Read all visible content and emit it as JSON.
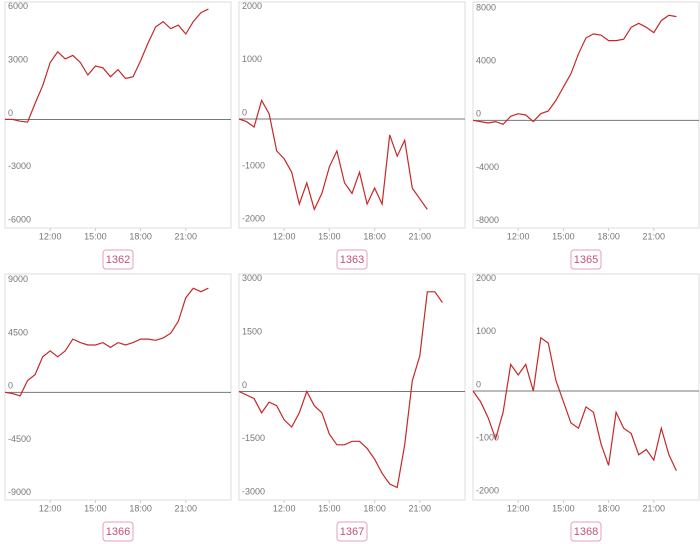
{
  "chart_data": [
    {
      "type": "line",
      "title": "1362",
      "color": "#c62828",
      "x": [
        9,
        9.5,
        10,
        10.5,
        11,
        11.5,
        12,
        12.5,
        13,
        13.5,
        14,
        14.5,
        15,
        15.5,
        16,
        16.5,
        17,
        17.5,
        18,
        18.5,
        19,
        19.5,
        20,
        20.5,
        21,
        21.5,
        22,
        22.5
      ],
      "values": [
        0,
        0,
        -100,
        -150,
        900,
        1900,
        3200,
        3800,
        3400,
        3600,
        3200,
        2500,
        3000,
        2900,
        2400,
        2800,
        2300,
        2400,
        3300,
        4300,
        5200,
        5500,
        5100,
        5300,
        4800,
        5500,
        6000,
        6200
      ],
      "xlim": [
        9,
        24
      ],
      "xticks": [
        {
          "value": 12,
          "label": "12:00"
        },
        {
          "value": 15,
          "label": "15:00"
        },
        {
          "value": 18,
          "label": "18:00"
        },
        {
          "value": 21,
          "label": "21:00"
        }
      ],
      "ylim": [
        -6100,
        6600
      ],
      "yticks": [
        -6000,
        -3000,
        0,
        3000,
        6000
      ]
    },
    {
      "type": "line",
      "title": "1363",
      "color": "#c62828",
      "x": [
        9,
        9.5,
        10,
        10.5,
        11,
        11.5,
        12,
        12.5,
        13,
        13.5,
        14,
        14.5,
        15,
        15.5,
        16,
        16.5,
        17,
        17.5,
        18,
        18.5,
        19,
        19.5,
        20,
        20.5,
        21,
        21.5
      ],
      "values": [
        0,
        -50,
        -150,
        350,
        100,
        -600,
        -750,
        -1000,
        -1600,
        -1200,
        -1700,
        -1400,
        -900,
        -600,
        -1200,
        -1400,
        -1000,
        -1600,
        -1300,
        -1600,
        -300,
        -700,
        -400,
        -1300,
        -1500,
        -1700
      ],
      "xlim": [
        9,
        24
      ],
      "xticks": [
        {
          "value": 12,
          "label": "12:00"
        },
        {
          "value": 15,
          "label": "15:00"
        },
        {
          "value": 18,
          "label": "18:00"
        },
        {
          "value": 21,
          "label": "21:00"
        }
      ],
      "ylim": [
        -2050,
        2200
      ],
      "yticks": [
        -2000,
        -1000,
        0,
        1000,
        2000
      ]
    },
    {
      "type": "line",
      "title": "1365",
      "color": "#c62828",
      "x": [
        9,
        9.5,
        10,
        10.5,
        11,
        11.5,
        12,
        12.5,
        13,
        13.5,
        14,
        14.5,
        15,
        15.5,
        16,
        16.5,
        17,
        17.5,
        18,
        18.5,
        19,
        19.5,
        20,
        20.5,
        21,
        21.5,
        22,
        22.5
      ],
      "values": [
        0,
        -100,
        -200,
        -100,
        -300,
        300,
        500,
        400,
        -100,
        500,
        700,
        1500,
        2500,
        3500,
        5000,
        6200,
        6500,
        6400,
        6000,
        6000,
        6100,
        7000,
        7300,
        7000,
        6600,
        7500,
        7900,
        7800
      ],
      "xlim": [
        9,
        24
      ],
      "xticks": [
        {
          "value": 12,
          "label": "12:00"
        },
        {
          "value": 15,
          "label": "15:00"
        },
        {
          "value": 18,
          "label": "18:00"
        },
        {
          "value": 21,
          "label": "21:00"
        }
      ],
      "ylim": [
        -8100,
        8900
      ],
      "yticks": [
        -8000,
        -4000,
        0,
        4000,
        8000
      ]
    },
    {
      "type": "line",
      "title": "1366",
      "color": "#c62828",
      "x": [
        9,
        9.5,
        10,
        10.5,
        11,
        11.5,
        12,
        12.5,
        13,
        13.5,
        14,
        14.5,
        15,
        15.5,
        16,
        16.5,
        17,
        17.5,
        18,
        18.5,
        19,
        19.5,
        20,
        20.5,
        21,
        21.5,
        22,
        22.5
      ],
      "values": [
        0,
        -100,
        -300,
        1000,
        1500,
        3000,
        3500,
        3000,
        3500,
        4500,
        4200,
        4000,
        4000,
        4200,
        3800,
        4200,
        4000,
        4200,
        4500,
        4500,
        4400,
        4600,
        5000,
        6000,
        8000,
        8800,
        8500,
        8800
      ],
      "xlim": [
        9,
        24
      ],
      "xticks": [
        {
          "value": 12,
          "label": "12:00"
        },
        {
          "value": 15,
          "label": "15:00"
        },
        {
          "value": 18,
          "label": "18:00"
        },
        {
          "value": 21,
          "label": "21:00"
        }
      ],
      "ylim": [
        -9100,
        10000
      ],
      "yticks": [
        -9000,
        -4500,
        0,
        4500,
        9000
      ]
    },
    {
      "type": "line",
      "title": "1367",
      "color": "#c62828",
      "x": [
        9,
        9.5,
        10,
        10.5,
        11,
        11.5,
        12,
        12.5,
        13,
        13.5,
        14,
        14.5,
        15,
        15.5,
        16,
        16.5,
        17,
        17.5,
        18,
        18.5,
        19,
        19.5,
        20,
        20.5,
        21,
        21.5,
        22,
        22.5
      ],
      "values": [
        0,
        -100,
        -200,
        -600,
        -300,
        -400,
        -800,
        -1000,
        -600,
        0,
        -400,
        -600,
        -1200,
        -1500,
        -1500,
        -1400,
        -1400,
        -1600,
        -1900,
        -2300,
        -2600,
        -2700,
        -1500,
        300,
        1000,
        2800,
        2800,
        2500
      ],
      "xlim": [
        9,
        24
      ],
      "xticks": [
        {
          "value": 12,
          "label": "12:00"
        },
        {
          "value": 15,
          "label": "15:00"
        },
        {
          "value": 18,
          "label": "18:00"
        },
        {
          "value": 21,
          "label": "21:00"
        }
      ],
      "ylim": [
        -3050,
        3300
      ],
      "yticks": [
        -3000,
        -1500,
        0,
        1500,
        3000
      ]
    },
    {
      "type": "line",
      "title": "1368",
      "color": "#c62828",
      "x": [
        9,
        9.5,
        10,
        10.5,
        11,
        11.5,
        12,
        12.5,
        13,
        13.5,
        14,
        14.5,
        15,
        15.5,
        16,
        16.5,
        17,
        17.5,
        18,
        18.5,
        19,
        19.5,
        20,
        20.5,
        21,
        21.5,
        22,
        22.5
      ],
      "values": [
        0,
        -200,
        -500,
        -900,
        -400,
        500,
        300,
        500,
        0,
        1000,
        900,
        200,
        -200,
        -600,
        -700,
        -300,
        -400,
        -1000,
        -1400,
        -400,
        -700,
        -800,
        -1200,
        -1100,
        -1300,
        -700,
        -1200,
        -1500
      ],
      "xlim": [
        9,
        24
      ],
      "xticks": [
        {
          "value": 12,
          "label": "12:00"
        },
        {
          "value": 15,
          "label": "15:00"
        },
        {
          "value": 18,
          "label": "18:00"
        },
        {
          "value": 21,
          "label": "21:00"
        }
      ],
      "ylim": [
        -2050,
        2200
      ],
      "yticks": [
        -2000,
        -1000,
        0,
        1000,
        2000
      ]
    }
  ]
}
